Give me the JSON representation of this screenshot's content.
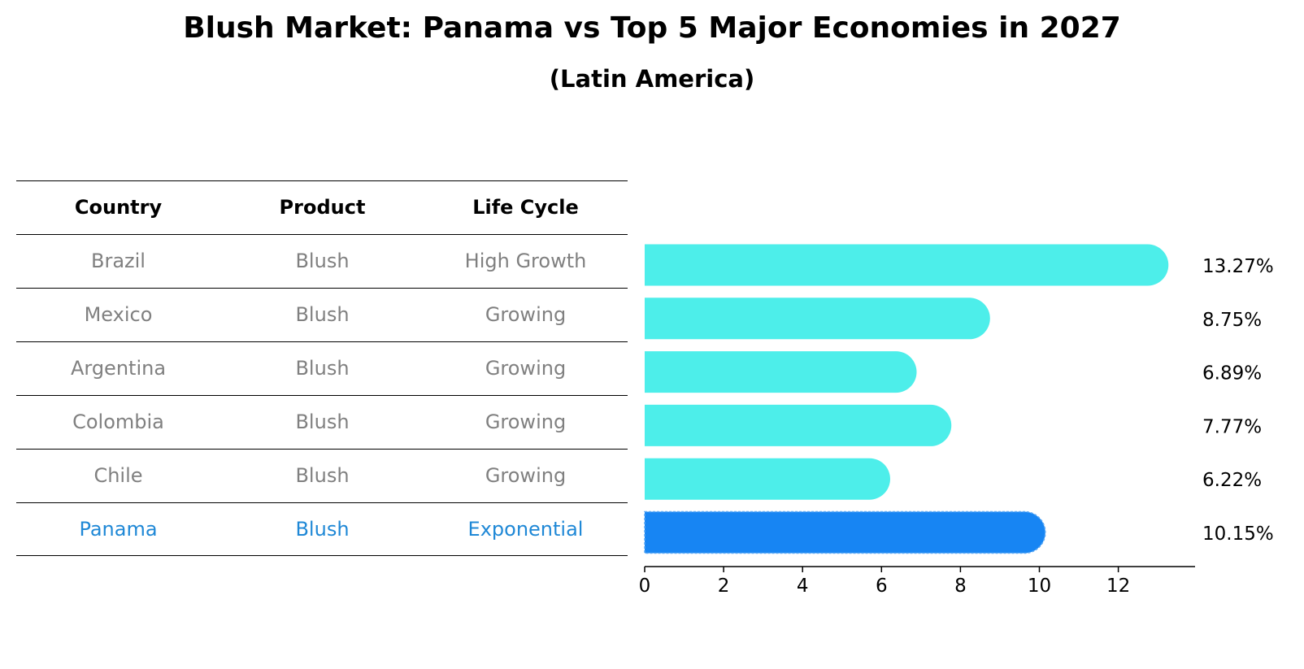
{
  "chart_data": {
    "type": "bar",
    "orientation": "horizontal",
    "title": "Blush Market: Panama vs Top 5 Major Economies in 2027",
    "subtitle": "(Latin America)",
    "categories": [
      "Brazil",
      "Mexico",
      "Argentina",
      "Colombia",
      "Chile",
      "Panama"
    ],
    "values": [
      13.27,
      8.75,
      6.89,
      7.77,
      6.22,
      10.15
    ],
    "value_labels": [
      "13.27%",
      "8.75%",
      "6.89%",
      "7.77%",
      "6.22%",
      "10.15%"
    ],
    "highlight": "Panama",
    "xlim": [
      0,
      13.9
    ],
    "x_ticks": [
      "0",
      "2",
      "4",
      "6",
      "8",
      "10",
      "12"
    ],
    "bar_color": "#4DEEEA",
    "highlight_color": "#1785F3",
    "grid": false
  },
  "table": {
    "headers": [
      "Country",
      "Product",
      "Life Cycle"
    ],
    "rows": [
      [
        "Brazil",
        "Blush",
        "High Growth"
      ],
      [
        "Mexico",
        "Blush",
        "Growing"
      ],
      [
        "Argentina",
        "Blush",
        "Growing"
      ],
      [
        "Colombia",
        "Blush",
        "Growing"
      ],
      [
        "Chile",
        "Blush",
        "Growing"
      ],
      [
        "Panama",
        "Blush",
        "Exponential"
      ]
    ],
    "text_color": "#808080",
    "highlight_text_color": "#1F88D6"
  }
}
